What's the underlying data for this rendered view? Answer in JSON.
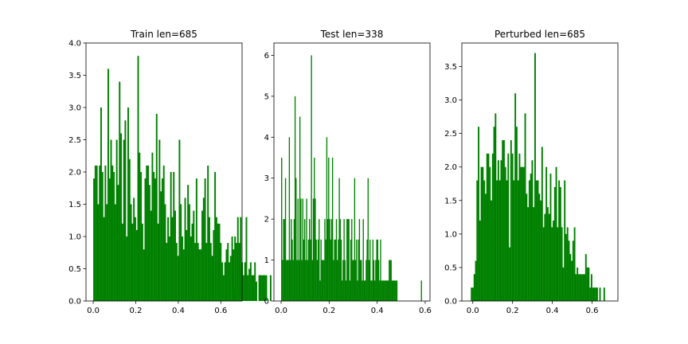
{
  "chart_data": [
    {
      "type": "bar",
      "title": "Train len=685",
      "xlabel": "",
      "ylabel": "",
      "xlim": [
        -0.034,
        0.7
      ],
      "ylim": [
        0,
        4.0
      ],
      "xticks": [
        0.0,
        0.2,
        0.4,
        0.6
      ],
      "xtick_labels": [
        "0.0",
        "0.2",
        "0.4",
        "0.6"
      ],
      "yticks": [
        0.0,
        0.5,
        1.0,
        1.5,
        2.0,
        2.5,
        3.0,
        3.5,
        4.0
      ],
      "ytick_labels": [
        "0.0",
        "0.5",
        "1.0",
        "1.5",
        "2.0",
        "2.5",
        "3.0",
        "3.5",
        "4.0"
      ],
      "color": "#008000",
      "bin_width": 0.0067,
      "bin_start": 0.0,
      "values": [
        1.9,
        2.1,
        2.1,
        1.5,
        2.1,
        3.0,
        2.0,
        1.3,
        2.1,
        1.5,
        3.6,
        1.9,
        2.5,
        2.1,
        2.0,
        1.5,
        2.5,
        1.8,
        3.4,
        2.6,
        1.2,
        2.5,
        2.8,
        1.0,
        3.0,
        2.2,
        1.5,
        1.2,
        1.6,
        1.3,
        1.1,
        3.8,
        2.3,
        2.0,
        1.2,
        0.8,
        1.9,
        2.1,
        2.1,
        1.8,
        1.4,
        2.3,
        2.0,
        1.9,
        2.9,
        1.2,
        2.5,
        1.7,
        1.9,
        2.1,
        1.5,
        0.9,
        1.3,
        1.0,
        2.0,
        1.3,
        2.0,
        1.4,
        0.9,
        0.7,
        2.5,
        1.5,
        1.0,
        0.8,
        1.6,
        1.1,
        1.8,
        1.5,
        1.0,
        1.2,
        1.4,
        0.9,
        1.9,
        0.9,
        0.8,
        0.8,
        1.4,
        1.6,
        1.9,
        0.9,
        2.1,
        1.3,
        0.9,
        0.7,
        1.1,
        2.0,
        1.3,
        1.2,
        1.2,
        0.9,
        0.6,
        0.4,
        0.6,
        0.8,
        0.9,
        0.6,
        0.7,
        1.0,
        0.8,
        1.0,
        0.9,
        1.3,
        0.9,
        1.3,
        0.6,
        0.4,
        0.6,
        1.3,
        0.4,
        0.5,
        0.6,
        0.4,
        0.4,
        0.6,
        0.3,
        0.0,
        0.4,
        0.4,
        0.4,
        0.4,
        0.4,
        0.4,
        0.0,
        0.0,
        0.4,
        0.0,
        0.0,
        0.0,
        0.0,
        0.0,
        0.0,
        0.0,
        0.0,
        0.0,
        0.0,
        0.0,
        0.0,
        0.0,
        0.0,
        0.0,
        0.0,
        0.0,
        0.0,
        0.0
      ],
      "extra_bars": [
        {
          "x": 0.662,
          "value": 0.2
        }
      ]
    },
    {
      "type": "bar",
      "title": "Test len=338",
      "xlabel": "",
      "ylabel": "",
      "xlim": [
        -0.03,
        0.62
      ],
      "ylim": [
        0,
        6.3
      ],
      "xticks": [
        0.0,
        0.2,
        0.4,
        0.6
      ],
      "xtick_labels": [
        "0.0",
        "0.2",
        "0.4",
        "0.6"
      ],
      "yticks": [
        0,
        1,
        2,
        3,
        4,
        5,
        6
      ],
      "ytick_labels": [
        "0",
        "1",
        "2",
        "3",
        "4",
        "5",
        "6"
      ],
      "color": "#008000",
      "values": [
        3.5,
        1.0,
        2.0,
        2.0,
        3.0,
        1.0,
        1.0,
        1.0,
        4.0,
        1.0,
        2.0,
        1.5,
        1.0,
        2.0,
        5.0,
        3.0,
        1.0,
        2.5,
        1.0,
        4.5,
        2.5,
        1.0,
        2.5,
        1.5,
        2.0,
        1.0,
        2.5,
        1.0,
        1.5,
        2.0,
        1.5,
        6.0,
        1.0,
        2.5,
        3.5,
        2.5,
        1.5,
        1.0,
        1.5,
        2.0,
        0.5,
        1.5,
        1.0,
        1.0,
        1.0,
        2.0,
        1.5,
        4.0,
        2.0,
        3.5,
        2.0,
        1.5,
        2.0,
        3.5,
        1.0,
        1.5,
        1.5,
        2.0,
        1.0,
        1.5,
        3.0,
        2.0,
        1.5,
        0.5,
        1.0,
        2.0,
        1.0,
        0.5,
        2.0,
        2.0,
        2.0,
        0.5,
        1.5,
        2.0,
        1.0,
        1.0,
        3.0,
        1.0,
        1.5,
        0.5,
        1.5,
        2.0,
        1.0,
        1.0,
        0.5,
        2.0,
        0.5,
        0.5,
        1.0,
        1.5,
        3.0,
        1.0,
        1.5,
        0.5,
        0.5,
        1.5,
        1.0,
        0.5,
        1.0,
        1.5,
        1.5,
        1.0,
        0.5,
        1.5,
        0.5,
        0.5,
        0.5,
        0.5,
        0.5,
        0.5,
        0.5,
        0.5,
        1.0,
        1.0,
        1.0,
        0.5,
        0.5,
        0.5,
        0.5,
        0.5,
        0.5,
        0.0,
        0.0,
        0.0,
        0.0,
        0.0,
        0.0,
        0.0,
        0.0,
        0.0,
        0.0,
        0.0,
        0.0,
        0.0,
        0.0,
        0.0,
        0.0,
        0.0,
        0.0,
        0.0,
        0.0,
        0.0,
        0.0,
        0.0,
        0.0,
        0.0
      ],
      "bin_width": 0.004,
      "bin_start": 0.0,
      "extra_bars": [
        {
          "x": 0.582,
          "value": 0.5
        }
      ]
    },
    {
      "type": "bar",
      "title": "Perturbed len=685",
      "xlabel": "",
      "ylabel": "",
      "xlim": [
        -0.055,
        0.73
      ],
      "ylim": [
        0,
        3.85
      ],
      "xticks": [
        0.0,
        0.2,
        0.4,
        0.6
      ],
      "xtick_labels": [
        "0.0",
        "0.2",
        "0.4",
        "0.6"
      ],
      "yticks": [
        0.0,
        0.5,
        1.0,
        1.5,
        2.0,
        2.5,
        3.0,
        3.5
      ],
      "ytick_labels": [
        "0.0",
        "0.5",
        "1.0",
        "1.5",
        "2.0",
        "2.5",
        "3.0",
        "3.5"
      ],
      "color": "#008000",
      "bin_start": -0.01,
      "bin_width": 0.0071,
      "values": [
        0.2,
        0.2,
        0.4,
        0.6,
        1.8,
        2.6,
        1.2,
        2.0,
        2.0,
        1.8,
        1.6,
        2.2,
        2.2,
        2.0,
        1.5,
        2.2,
        2.6,
        2.8,
        1.8,
        2.1,
        1.8,
        2.1,
        2.4,
        2.4,
        2.0,
        1.8,
        2.2,
        0.8,
        2.4,
        2.2,
        1.8,
        3.1,
        2.6,
        1.8,
        2.2,
        2.0,
        2.0,
        2.0,
        2.8,
        1.6,
        1.4,
        1.8,
        1.9,
        2.1,
        1.4,
        3.7,
        1.8,
        1.8,
        1.6,
        1.5,
        2.3,
        1.1,
        1.3,
        2.0,
        1.4,
        1.3,
        1.9,
        1.1,
        1.2,
        1.7,
        2.0,
        1.1,
        1.8,
        1.7,
        1.1,
        0.5,
        1.8,
        1.0,
        1.1,
        0.9,
        0.7,
        0.6,
        0.9,
        1.1,
        0.4,
        0.5,
        0.4,
        0.4,
        0.4,
        0.4,
        0.4,
        0.7,
        0.5,
        0.5,
        0.2,
        0.4,
        0.2,
        0.2,
        0.2,
        0.2,
        0.0,
        0.2,
        0.0,
        0.0,
        0.2,
        0.0,
        0.0,
        0.0,
        0.0,
        0.0,
        0.0,
        0.0,
        0.0,
        0.0,
        0.0,
        0.0,
        0.0,
        0.0,
        0.0,
        0.0
      ],
      "extra_bars": []
    }
  ]
}
